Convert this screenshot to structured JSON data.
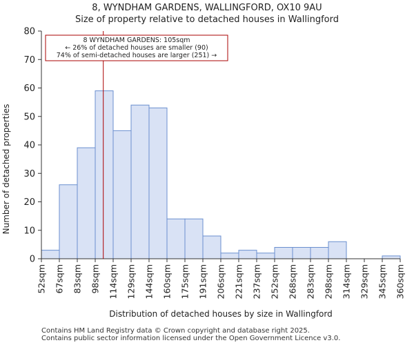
{
  "chart_data": {
    "type": "bar",
    "title": "8, WYNDHAM GARDENS, WALLINGFORD, OX10 9AU",
    "subtitle": "Size of property relative to detached houses in Wallingford",
    "xlabel": "Distribution of detached houses by size in Wallingford",
    "ylabel": "Number of detached properties",
    "ylim": [
      0,
      80
    ],
    "yticks": [
      0,
      10,
      20,
      30,
      40,
      50,
      60,
      70,
      80
    ],
    "tick_labels": [
      "52sqm",
      "67sqm",
      "83sqm",
      "98sqm",
      "114sqm",
      "129sqm",
      "144sqm",
      "160sqm",
      "175sqm",
      "191sqm",
      "206sqm",
      "221sqm",
      "237sqm",
      "252sqm",
      "268sqm",
      "283sqm",
      "298sqm",
      "314sqm",
      "329sqm",
      "345sqm",
      "360sqm"
    ],
    "values": [
      3,
      26,
      39,
      59,
      45,
      54,
      53,
      14,
      14,
      8,
      2,
      3,
      2,
      4,
      4,
      4,
      6,
      0,
      0,
      1
    ],
    "bar_fill": "#d9e2f5",
    "bar_stroke": "#6a8fcf",
    "marker": {
      "bin_position": 3.45,
      "color": "#aa0000",
      "label_lines": [
        "8 WYNDHAM GARDENS: 105sqm",
        "← 26% of detached houses are smaller (90)",
        "74% of semi-detached houses are larger (251) →"
      ]
    }
  },
  "footer": {
    "line1": "Contains HM Land Registry data © Crown copyright and database right 2025.",
    "line2": "Contains public sector information licensed under the Open Government Licence v3.0."
  }
}
